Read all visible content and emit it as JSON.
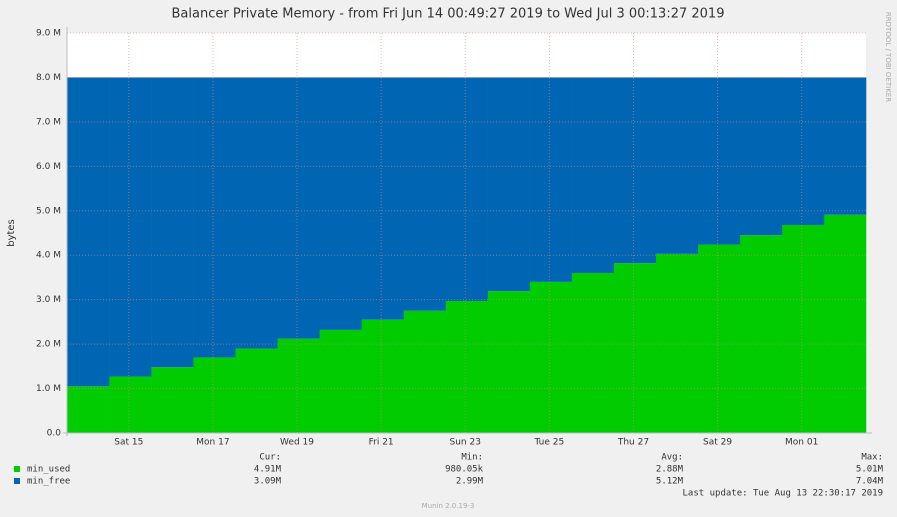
{
  "chart_data": {
    "type": "stacked-step-area",
    "title": "Balancer Private Memory - from Fri Jun 14 00:49:27 2019 to Wed Jul  3 00:13:27 2019",
    "y_label": "bytes",
    "side_note": "RRDTOOL / TOBI OETIKER",
    "x": [
      0,
      1,
      2,
      3,
      4,
      5,
      6,
      7,
      8,
      9,
      10,
      11,
      12,
      13,
      14,
      15,
      16,
      17,
      18
    ],
    "xlim": [
      0,
      19
    ],
    "xticks": [
      {
        "value": 1.47,
        "label": "Sat 15"
      },
      {
        "value": 3.47,
        "label": "Mon 17"
      },
      {
        "value": 5.47,
        "label": "Wed 19"
      },
      {
        "value": 7.47,
        "label": "Fri 21"
      },
      {
        "value": 9.47,
        "label": "Sun 23"
      },
      {
        "value": 11.47,
        "label": "Tue 25"
      },
      {
        "value": 13.47,
        "label": "Thu 27"
      },
      {
        "value": 15.47,
        "label": "Sat 29"
      },
      {
        "value": 17.47,
        "label": "Mon 01"
      }
    ],
    "ylim": [
      0,
      9
    ],
    "yticks": [
      {
        "value": 0,
        "label": "0.0"
      },
      {
        "value": 1,
        "label": "1.0 M"
      },
      {
        "value": 2,
        "label": "2.0 M"
      },
      {
        "value": 3,
        "label": "3.0 M"
      },
      {
        "value": 4,
        "label": "4.0 M"
      },
      {
        "value": 5,
        "label": "5.0 M"
      },
      {
        "value": 6,
        "label": "6.0 M"
      },
      {
        "value": 7,
        "label": "7.0 M"
      },
      {
        "value": 8,
        "label": "8.0 M"
      },
      {
        "value": 9,
        "label": "9.0 M"
      }
    ],
    "grid": true,
    "series": [
      {
        "name": "min_used",
        "color": "#00cc00",
        "values": [
          1.05,
          1.27,
          1.48,
          1.7,
          1.9,
          2.12,
          2.32,
          2.55,
          2.75,
          2.97,
          3.19,
          3.4,
          3.6,
          3.82,
          4.03,
          4.24,
          4.45,
          4.68,
          4.91
        ]
      },
      {
        "name": "min_free",
        "color": "#0066b3",
        "values": [
          6.95,
          6.73,
          6.52,
          6.3,
          6.1,
          5.88,
          5.68,
          5.45,
          5.25,
          5.03,
          4.81,
          4.6,
          4.4,
          4.18,
          3.97,
          3.76,
          3.55,
          3.32,
          3.09
        ]
      }
    ],
    "stats_headers": [
      "Cur:",
      "Min:",
      "Avg:",
      "Max:"
    ],
    "stats": [
      [
        "4.91M",
        "980.05k",
        "2.88M",
        "5.01M"
      ],
      [
        "3.09M",
        "2.99M",
        "5.12M",
        "7.04M"
      ]
    ],
    "last_update": "Last update: Tue Aug 13 22:30:17 2019",
    "footer": "Munin 2.0.19-3"
  }
}
